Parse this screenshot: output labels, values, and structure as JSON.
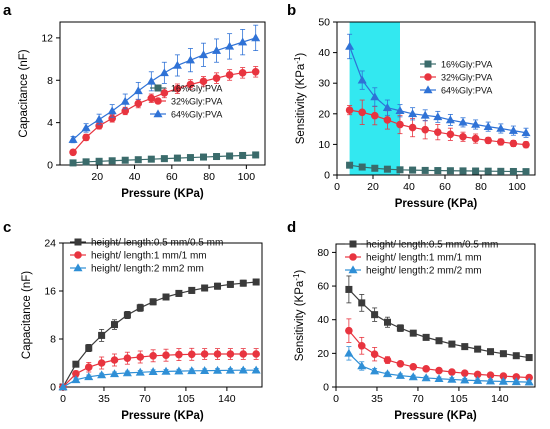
{
  "figure": {
    "background": "#ffffff"
  },
  "chart_data": [
    {
      "id": "a",
      "panel_label": "a",
      "type": "line",
      "xlabel": "Pressure (KPa)",
      "ylabel": "Capacitance (nF)",
      "xlim": [
        0,
        110
      ],
      "ylim": [
        0,
        13.5
      ],
      "xticks": [
        20,
        40,
        60,
        80,
        100
      ],
      "yticks": [
        0,
        4,
        8,
        12
      ],
      "legend_position": "center-right",
      "series": [
        {
          "name": "16%Gly:PVA",
          "color": "#3a6b6b",
          "marker": "square",
          "x": [
            7,
            14,
            21,
            28,
            35,
            42,
            49,
            56,
            63,
            70,
            77,
            84,
            91,
            98,
            105
          ],
          "y": [
            0.2,
            0.3,
            0.35,
            0.4,
            0.45,
            0.5,
            0.55,
            0.6,
            0.65,
            0.7,
            0.75,
            0.8,
            0.85,
            0.9,
            0.95
          ],
          "err": [
            0.05,
            0.05,
            0.05,
            0.05,
            0.05,
            0.05,
            0.05,
            0.05,
            0.05,
            0.05,
            0.05,
            0.05,
            0.05,
            0.05,
            0.05
          ]
        },
        {
          "name": "32%Gly:PVA",
          "color": "#e8343f",
          "marker": "circle",
          "x": [
            7,
            14,
            21,
            28,
            35,
            42,
            49,
            56,
            63,
            70,
            77,
            84,
            91,
            98,
            105
          ],
          "y": [
            1.2,
            2.6,
            3.7,
            4.4,
            5.1,
            5.8,
            6.3,
            6.8,
            7.2,
            7.6,
            7.9,
            8.2,
            8.5,
            8.7,
            8.8
          ],
          "err": [
            0.25,
            0.3,
            0.3,
            0.35,
            0.35,
            0.4,
            0.4,
            0.45,
            0.45,
            0.45,
            0.45,
            0.5,
            0.5,
            0.5,
            0.5
          ]
        },
        {
          "name": "64%Gly:PVA",
          "color": "#2f72d6",
          "marker": "triangle",
          "x": [
            7,
            14,
            21,
            28,
            35,
            42,
            49,
            56,
            63,
            70,
            77,
            84,
            91,
            98,
            105
          ],
          "y": [
            2.4,
            3.5,
            4.3,
            5.1,
            6.0,
            7.0,
            7.9,
            8.7,
            9.4,
            9.9,
            10.4,
            10.8,
            11.2,
            11.6,
            12.0
          ],
          "err": [
            0.3,
            0.4,
            0.5,
            0.6,
            0.7,
            0.8,
            0.9,
            1.0,
            1.0,
            1.1,
            1.1,
            1.1,
            1.2,
            1.2,
            1.2
          ]
        }
      ]
    },
    {
      "id": "b",
      "panel_label": "b",
      "type": "line",
      "xlabel": "Pressure (KPa)",
      "ylabel": "Sensitivity (KPa",
      "ylabel_sup": "-1",
      "ylabel_end": ")",
      "xlim": [
        0,
        110
      ],
      "ylim": [
        0,
        50
      ],
      "xticks": [
        0,
        20,
        40,
        60,
        80,
        100
      ],
      "yticks": [
        0,
        10,
        20,
        30,
        40,
        50
      ],
      "highlight_x": [
        7,
        35
      ],
      "highlight_color": "#33e8f0",
      "legend_position": "center-right",
      "series": [
        {
          "name": "16%Gly:PVA",
          "color": "#3a6b6b",
          "marker": "square",
          "x": [
            7,
            14,
            21,
            28,
            35,
            42,
            49,
            56,
            63,
            70,
            77,
            84,
            91,
            98,
            105
          ],
          "y": [
            3.2,
            2.6,
            2.2,
            1.9,
            1.7,
            1.6,
            1.5,
            1.45,
            1.4,
            1.35,
            1.3,
            1.25,
            1.2,
            1.15,
            1.1
          ],
          "err": [
            0.3,
            0.3,
            0.3,
            0.3,
            0.3,
            0.3,
            0.3,
            0.3,
            0.3,
            0.3,
            0.3,
            0.3,
            0.3,
            0.3,
            0.3
          ]
        },
        {
          "name": "32%Gly:PVA",
          "color": "#e8343f",
          "marker": "circle",
          "x": [
            7,
            14,
            21,
            28,
            35,
            42,
            49,
            56,
            63,
            70,
            77,
            84,
            91,
            98,
            105
          ],
          "y": [
            21.2,
            20.5,
            19.4,
            18.0,
            16.5,
            15.5,
            14.8,
            14.0,
            13.3,
            12.5,
            11.9,
            11.3,
            10.8,
            10.3,
            9.9
          ],
          "err": [
            1.5,
            4.0,
            3.0,
            3.0,
            3.0,
            3.0,
            3.0,
            2.5,
            2.0,
            1.5,
            1.5,
            1.0,
            1.0,
            1.0,
            1.0
          ]
        },
        {
          "name": "64%Gly:PVA",
          "color": "#2f72d6",
          "marker": "triangle",
          "x": [
            7,
            14,
            21,
            28,
            35,
            42,
            49,
            56,
            63,
            70,
            77,
            84,
            91,
            98,
            105
          ],
          "y": [
            42.0,
            31.0,
            25.5,
            22.0,
            21.0,
            20.0,
            19.5,
            19.0,
            18.0,
            17.2,
            16.5,
            15.8,
            15.2,
            14.5,
            13.8
          ],
          "err": [
            4.0,
            3.0,
            3.0,
            2.5,
            2.0,
            2.0,
            1.8,
            1.8,
            1.8,
            1.5,
            1.5,
            1.5,
            1.5,
            1.5,
            1.5
          ]
        }
      ]
    },
    {
      "id": "c",
      "panel_label": "c",
      "type": "line",
      "xlabel": "Pressure (KPa)",
      "ylabel": "Capacitance (nF)",
      "xlim": [
        0,
        170
      ],
      "ylim": [
        0,
        24
      ],
      "xticks": [
        0,
        35,
        70,
        105,
        140
      ],
      "yticks": [
        0,
        8,
        16,
        24
      ],
      "legend_position": "top-left",
      "series": [
        {
          "name": "height/ length:0.5 mm/0.5 mm",
          "color": "#3a3a3a",
          "marker": "square",
          "x": [
            0,
            11,
            22,
            33,
            44,
            55,
            66,
            77,
            88,
            99,
            110,
            121,
            132,
            143,
            154,
            165
          ],
          "y": [
            0,
            3.8,
            6.5,
            8.6,
            10.4,
            12.0,
            13.2,
            14.2,
            15.0,
            15.6,
            16.1,
            16.5,
            16.8,
            17.1,
            17.3,
            17.5
          ],
          "err": [
            0,
            0.4,
            0.6,
            1.0,
            0.8,
            0.6,
            0.6,
            0.5,
            0.5,
            0.5,
            0.5,
            0.5,
            0.5,
            0.5,
            0.5,
            0.5
          ]
        },
        {
          "name": "height/ length:1 mm/1 mm",
          "color": "#e8343f",
          "marker": "circle",
          "x": [
            0,
            11,
            22,
            33,
            44,
            55,
            66,
            77,
            88,
            99,
            110,
            121,
            132,
            143,
            154,
            165
          ],
          "y": [
            0,
            2.2,
            3.3,
            4.0,
            4.5,
            4.8,
            5.0,
            5.2,
            5.3,
            5.4,
            5.45,
            5.5,
            5.5,
            5.5,
            5.5,
            5.5
          ],
          "err": [
            0,
            0.5,
            0.8,
            1.0,
            1.0,
            1.0,
            1.0,
            1.0,
            1.0,
            1.0,
            1.0,
            0.9,
            0.9,
            0.9,
            0.9,
            0.9
          ]
        },
        {
          "name": "height/ length:2 mm2 mm",
          "color": "#2f8fd6",
          "marker": "triangle",
          "x": [
            0,
            11,
            22,
            33,
            44,
            55,
            66,
            77,
            88,
            99,
            110,
            121,
            132,
            143,
            154,
            165
          ],
          "y": [
            0,
            1.2,
            1.7,
            2.0,
            2.2,
            2.35,
            2.45,
            2.55,
            2.6,
            2.65,
            2.7,
            2.72,
            2.75,
            2.78,
            2.8,
            2.8
          ],
          "err": [
            0,
            0.3,
            0.3,
            0.3,
            0.3,
            0.3,
            0.3,
            0.3,
            0.3,
            0.3,
            0.3,
            0.3,
            0.3,
            0.3,
            0.3,
            0.3
          ]
        }
      ]
    },
    {
      "id": "d",
      "panel_label": "d",
      "type": "line",
      "xlabel": "Pressure (KPa)",
      "ylabel": "Sensitivity (KPa",
      "ylabel_sup": "-1",
      "ylabel_end": ")",
      "xlim": [
        0,
        170
      ],
      "ylim": [
        0,
        85
      ],
      "xticks": [
        0,
        35,
        70,
        105,
        140
      ],
      "yticks": [
        0,
        20,
        40,
        60,
        80
      ],
      "legend_position": "top-right",
      "series": [
        {
          "name": "height/ length:0.5 mm/0.5 mm",
          "color": "#3a3a3a",
          "marker": "square",
          "x": [
            11,
            22,
            33,
            44,
            55,
            66,
            77,
            88,
            99,
            110,
            121,
            132,
            143,
            154,
            165
          ],
          "y": [
            58,
            50,
            43,
            38.5,
            35,
            32,
            29.5,
            27.5,
            25.5,
            24,
            22.5,
            21,
            19.8,
            18.6,
            17.5
          ],
          "err": [
            8,
            5,
            4,
            3,
            2,
            1.5,
            1.5,
            1.5,
            1.5,
            1,
            1,
            1,
            1,
            1,
            1
          ]
        },
        {
          "name": "height/ length:1 mm/1 mm",
          "color": "#e8343f",
          "marker": "circle",
          "x": [
            11,
            22,
            33,
            44,
            55,
            66,
            77,
            88,
            99,
            110,
            121,
            132,
            143,
            154,
            165
          ],
          "y": [
            33.5,
            24.5,
            19.5,
            16,
            13.8,
            12,
            10.8,
            9.8,
            8.9,
            8.2,
            7.5,
            7,
            6.5,
            6,
            5.6
          ],
          "err": [
            7,
            5,
            4,
            2,
            1.5,
            1.5,
            1,
            1,
            1,
            1,
            1,
            1,
            1,
            1,
            1
          ]
        },
        {
          "name": "height/ length:2 mm/2 mm",
          "color": "#2f8fd6",
          "marker": "triangle",
          "x": [
            11,
            22,
            33,
            44,
            55,
            66,
            77,
            88,
            99,
            110,
            121,
            132,
            143,
            154,
            165
          ],
          "y": [
            20,
            12.5,
            9.5,
            7.8,
            6.8,
            6,
            5.4,
            4.9,
            4.5,
            4.1,
            3.8,
            3.5,
            3.3,
            3.1,
            2.9
          ],
          "err": [
            4,
            2.5,
            1.5,
            1,
            1,
            1,
            1,
            1,
            1,
            1,
            1,
            1,
            1,
            1,
            1
          ]
        }
      ]
    }
  ]
}
